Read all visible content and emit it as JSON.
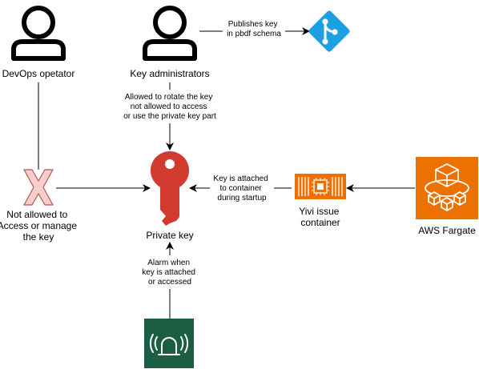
{
  "nodes": {
    "devops": {
      "label": "DevOps opetator"
    },
    "admins": {
      "label": "Key administrators"
    },
    "private_key": {
      "label": "Private key"
    },
    "denied": {
      "label_lines": [
        "Not allowed to",
        "Access or manage",
        "the key"
      ]
    },
    "container": {
      "label_lines": [
        "Yivi issue",
        "container"
      ]
    },
    "fargate": {
      "label": "AWS Fargate"
    }
  },
  "edges": {
    "publish": {
      "label_lines": [
        "Publishes key",
        "in pbdf schema"
      ]
    },
    "rotate": {
      "label_lines": [
        "Allowed to rotate the key",
        "not allowed to access",
        "or use the private key part"
      ]
    },
    "attach": {
      "label_lines": [
        "Key is attached",
        "to container",
        "during startup"
      ]
    },
    "alarm": {
      "label_lines": [
        "Alarm when",
        "key is attached",
        "or accessed"
      ]
    }
  },
  "colors": {
    "person_stroke": "#000000",
    "key_red": "#D33A2F",
    "deny_fill": "#F8CECC",
    "deny_stroke": "#B85450",
    "git_blue": "#1BA0E1",
    "container_orange": "#ED7100",
    "fargate_orange": "#ED7100",
    "alarm_green": "#1B5E44"
  },
  "icons": {
    "devops": "user-icon",
    "admins": "user-icon",
    "repository": "git-icon",
    "key": "key-icon",
    "denied": "x-mark-icon",
    "container": "chip-container-icon",
    "fargate": "fargate-icon",
    "alarm": "alarm-icon"
  }
}
